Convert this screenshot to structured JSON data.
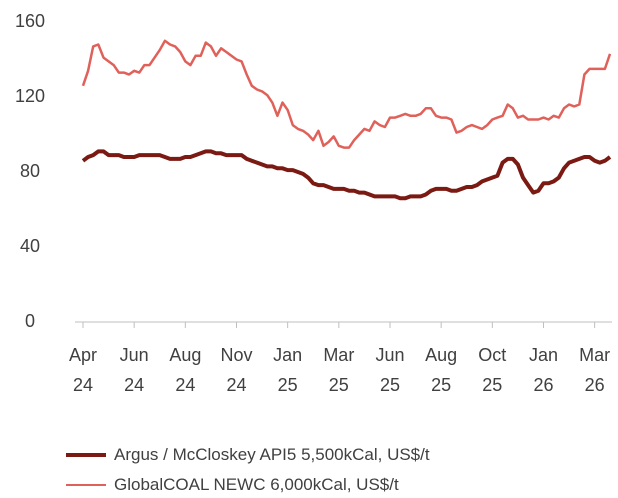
{
  "chart_data": {
    "type": "line",
    "series": [
      {
        "name": "Argus / McCloskey API5 5,500kCal, US$/t",
        "color": "#7b1a12",
        "width": 4,
        "values": [
          86,
          88,
          89,
          91,
          91,
          89,
          89,
          89,
          88,
          88,
          88,
          89,
          89,
          89,
          89,
          89,
          88,
          87,
          87,
          87,
          88,
          88,
          89,
          90,
          91,
          91,
          90,
          90,
          89,
          89,
          89,
          89,
          87,
          86,
          85,
          84,
          83,
          83,
          82,
          82,
          81,
          81,
          80,
          79,
          77,
          74,
          73,
          73,
          72,
          71,
          71,
          71,
          70,
          70,
          69,
          69,
          68,
          67,
          67,
          67,
          67,
          67,
          66,
          66,
          67,
          67,
          67,
          68,
          70,
          71,
          71,
          71,
          70,
          70,
          71,
          72,
          72,
          73,
          75,
          76,
          77,
          78,
          85,
          87,
          87,
          84,
          77,
          73,
          69,
          70,
          74,
          74,
          75,
          77,
          82,
          85,
          86,
          87,
          88,
          88,
          86,
          85,
          86,
          88
        ]
      },
      {
        "name": "GlobalCOAL NEWC 6,000kCal, US$/t",
        "color": "#e0605a",
        "width": 2.5,
        "values": [
          126,
          134,
          147,
          148,
          141,
          139,
          137,
          133,
          133,
          132,
          134,
          133,
          137,
          137,
          141,
          145,
          150,
          148,
          147,
          144,
          139,
          137,
          142,
          142,
          149,
          147,
          142,
          146,
          144,
          142,
          140,
          139,
          132,
          126,
          124,
          123,
          121,
          117,
          110,
          117,
          113,
          105,
          103,
          102,
          100,
          97,
          102,
          94,
          96,
          99,
          94,
          93,
          93,
          97,
          100,
          103,
          102,
          107,
          105,
          104,
          109,
          109,
          110,
          111,
          110,
          110,
          111,
          114,
          114,
          110,
          109,
          109,
          108,
          101,
          102,
          104,
          105,
          104,
          103,
          105,
          108,
          109,
          110,
          116,
          114,
          109,
          110,
          108,
          108,
          108,
          109,
          108,
          110,
          109,
          114,
          116,
          115,
          116,
          132,
          135,
          135,
          135,
          135,
          143
        ]
      }
    ],
    "xlim": [
      0,
      103
    ],
    "xticks": [
      {
        "value": 0,
        "label": "Apr 24"
      },
      {
        "value": 10,
        "label": "Jun 24"
      },
      {
        "value": 20,
        "label": "Aug 24"
      },
      {
        "value": 30,
        "label": "Nov 24"
      },
      {
        "value": 40,
        "label": "Jan 25"
      },
      {
        "value": 50,
        "label": "Mar 25"
      },
      {
        "value": 60,
        "label": "Jun 25"
      },
      {
        "value": 70,
        "label": "Aug 25"
      },
      {
        "value": 80,
        "label": "Oct 25"
      },
      {
        "value": 90,
        "label": "Jan 26"
      },
      {
        "value": 100,
        "label": "Mar 26"
      }
    ],
    "ylim": [
      0,
      160
    ],
    "yticks": [
      0,
      40,
      80,
      120,
      160
    ],
    "grid": false,
    "legend": "bottom"
  }
}
